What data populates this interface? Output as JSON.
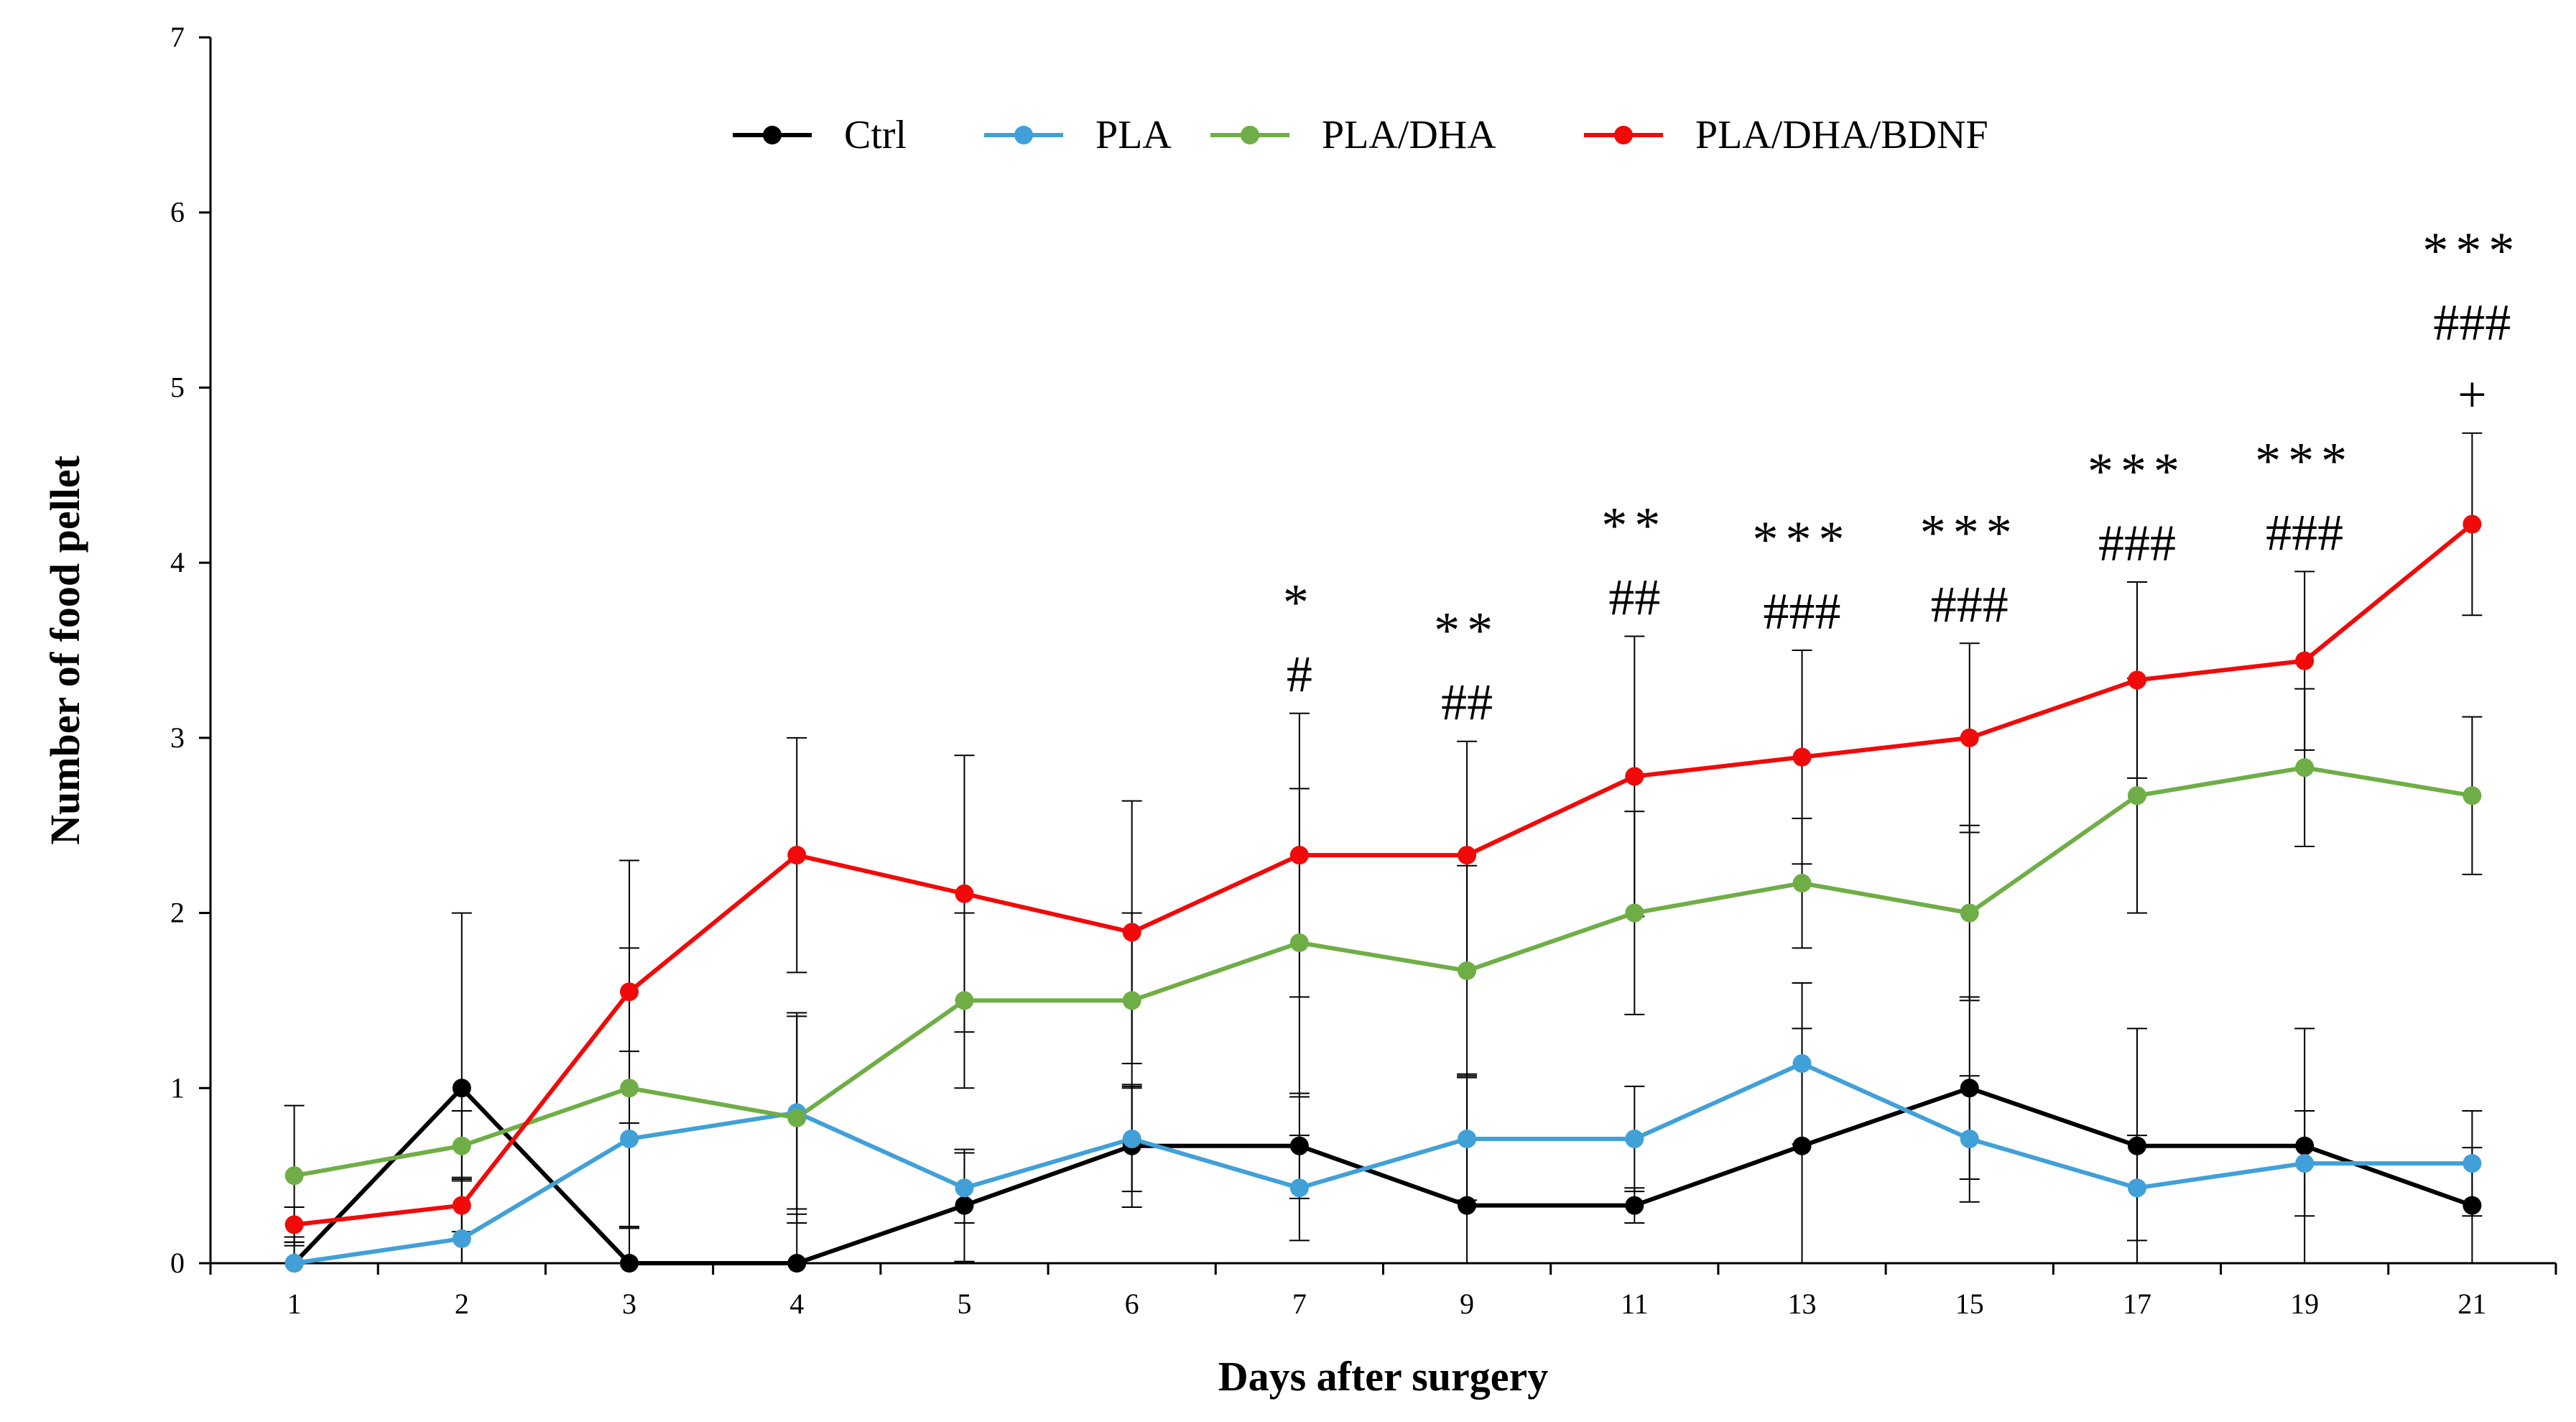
{
  "chart_data": {
    "type": "line",
    "title": "",
    "xlabel": "Days after surgery",
    "ylabel": "Number of food pellet",
    "ylim": [
      0,
      7
    ],
    "yticks": [
      "0",
      "1",
      "2",
      "3",
      "4",
      "5",
      "6",
      "7"
    ],
    "categories": [
      "1",
      "2",
      "3",
      "4",
      "5",
      "6",
      "7",
      "9",
      "11",
      "13",
      "15",
      "17",
      "19",
      "21"
    ],
    "legend_position": "top",
    "series": [
      {
        "name": "Ctrl",
        "color": "#000000",
        "values": [
          0,
          1,
          0,
          0,
          0.33,
          0.67,
          0.67,
          0.33,
          0.33,
          0.67,
          1,
          0.67,
          0.67,
          0.33
        ],
        "errors": [
          0.12,
          1.0,
          0.2,
          0.28,
          0.32,
          0.35,
          0.3,
          0.75,
          0.1,
          0.67,
          0.52,
          0.67,
          0.67,
          0.33
        ]
      },
      {
        "name": "PLA",
        "color": "#41a0d8",
        "values": [
          0,
          0.14,
          0.71,
          0.86,
          0.43,
          0.71,
          0.43,
          0.71,
          0.71,
          1.14,
          0.71,
          0.43,
          0.57,
          0.57
        ],
        "errors": [
          0.15,
          0.35,
          0.5,
          0.55,
          0.2,
          0.3,
          0.3,
          0.35,
          0.3,
          0.46,
          0.36,
          0.3,
          0.3,
          0.3
        ]
      },
      {
        "name": "PLA/DHA",
        "color": "#6fae46",
        "values": [
          0.5,
          0.67,
          1,
          0.83,
          1.5,
          1.5,
          1.83,
          1.67,
          2,
          2.17,
          2,
          2.67,
          2.83,
          2.67
        ],
        "errors": [
          0.4,
          0.2,
          0.8,
          0.6,
          0.5,
          0.5,
          0.88,
          0.6,
          0.58,
          0.37,
          0.5,
          0.67,
          0.45,
          0.45
        ]
      },
      {
        "name": "PLA/DHA/BDNF",
        "color": "#f00a0a",
        "values": [
          0.22,
          0.33,
          1.55,
          2.33,
          2.11,
          1.89,
          2.33,
          2.33,
          2.78,
          2.89,
          3,
          3.33,
          3.44,
          4.22
        ],
        "errors": [
          0.1,
          0.15,
          0.75,
          0.67,
          0.79,
          0.75,
          0.81,
          0.65,
          0.8,
          0.61,
          0.54,
          0.56,
          0.51,
          0.52
        ]
      }
    ],
    "annotations": [
      {
        "category": "7",
        "lines": [
          "*",
          "#"
        ]
      },
      {
        "category": "9",
        "lines": [
          "**",
          "##"
        ]
      },
      {
        "category": "11",
        "lines": [
          "**",
          "##"
        ]
      },
      {
        "category": "13",
        "lines": [
          "***",
          "###"
        ]
      },
      {
        "category": "15",
        "lines": [
          "***",
          "###"
        ]
      },
      {
        "category": "17",
        "lines": [
          "***",
          "###"
        ]
      },
      {
        "category": "19",
        "lines": [
          "***",
          "###"
        ]
      },
      {
        "category": "21",
        "lines": [
          "***",
          "###",
          "+"
        ]
      }
    ]
  }
}
